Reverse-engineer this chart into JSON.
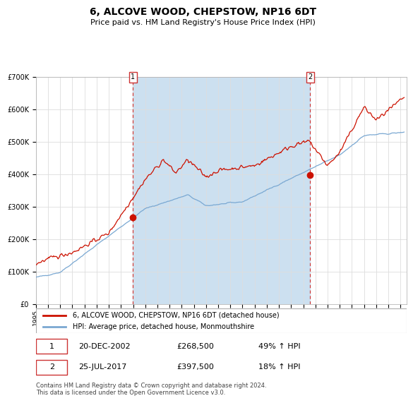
{
  "title": "6, ALCOVE WOOD, CHEPSTOW, NP16 6DT",
  "subtitle": "Price paid vs. HM Land Registry's House Price Index (HPI)",
  "legend_line1": "6, ALCOVE WOOD, CHEPSTOW, NP16 6DT (detached house)",
  "legend_line2": "HPI: Average price, detached house, Monmouthshire",
  "annotation1_date": "20-DEC-2002",
  "annotation1_price": "£268,500",
  "annotation1_hpi": "49% ↑ HPI",
  "annotation2_date": "25-JUL-2017",
  "annotation2_price": "£397,500",
  "annotation2_hpi": "18% ↑ HPI",
  "footer": "Contains HM Land Registry data © Crown copyright and database right 2024.\nThis data is licensed under the Open Government Licence v3.0.",
  "sale1_year": 2002.97,
  "sale1_value": 268500,
  "sale2_year": 2017.56,
  "sale2_value": 397500,
  "ylim": [
    0,
    700000
  ],
  "xlim_start": 1995.0,
  "xlim_end": 2025.5,
  "hpi_color": "#7aa8d2",
  "price_color": "#cc1100",
  "span_color": "#cce0f0",
  "grid_color": "#dddddd",
  "title_fontsize": 10,
  "subtitle_fontsize": 8,
  "axis_fontsize": 7,
  "dashed_line_color": "#cc3333"
}
